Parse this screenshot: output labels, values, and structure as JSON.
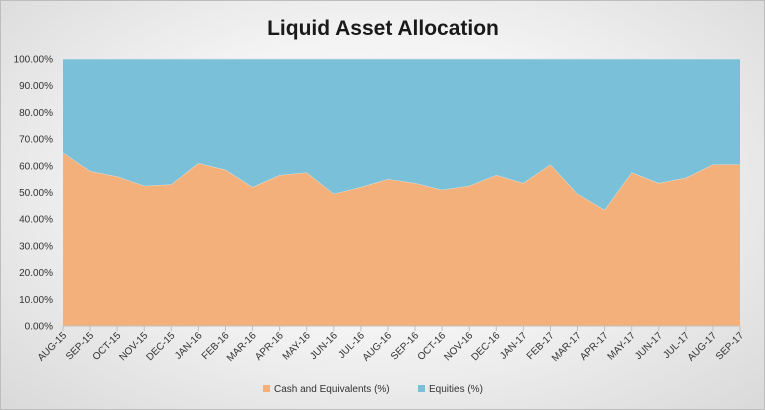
{
  "chart_data": {
    "type": "area",
    "stacked": true,
    "title": "Liquid Asset Allocation",
    "xlabel": "",
    "ylabel": "",
    "categories": [
      "AUG-15",
      "SEP-15",
      "OCT-15",
      "NOV-15",
      "DEC-15",
      "JAN-16",
      "FEB-16",
      "MAR-16",
      "APR-16",
      "MAY-16",
      "JUN-16",
      "JUL-16",
      "AUG-16",
      "SEP-16",
      "OCT-16",
      "NOV-16",
      "DEC-16",
      "JAN-17",
      "FEB-17",
      "MAR-17",
      "APR-17",
      "MAY-17",
      "JUN-17",
      "JUL-17",
      "AUG-17",
      "SEP-17"
    ],
    "series": [
      {
        "name": "Cash and Equivalents (%)",
        "color": "#f4b07a",
        "values": [
          65,
          58,
          56,
          52.5,
          53,
          61,
          58.5,
          52,
          56.5,
          57.5,
          49.5,
          52,
          55,
          53.5,
          51,
          52.5,
          56.5,
          53.5,
          60.5,
          49.5,
          43.5,
          57.5,
          53.5,
          55.5,
          60.5,
          60.5
        ]
      },
      {
        "name": "Equities (%)",
        "color": "#7ac0d8",
        "values": [
          35,
          42,
          44,
          47.5,
          47,
          39,
          41.5,
          48,
          43.5,
          42.5,
          50.5,
          48,
          45,
          46.5,
          49,
          47.5,
          43.5,
          46.5,
          39.5,
          50.5,
          56.5,
          42.5,
          46.5,
          44.5,
          39.5,
          39.5
        ]
      }
    ],
    "yticks": [
      "0.00%",
      "10.00%",
      "20.00%",
      "30.00%",
      "40.00%",
      "50.00%",
      "60.00%",
      "70.00%",
      "80.00%",
      "90.00%",
      "100.00%"
    ],
    "ylim": [
      0,
      100
    ],
    "grid": true,
    "legend": "bottom"
  }
}
